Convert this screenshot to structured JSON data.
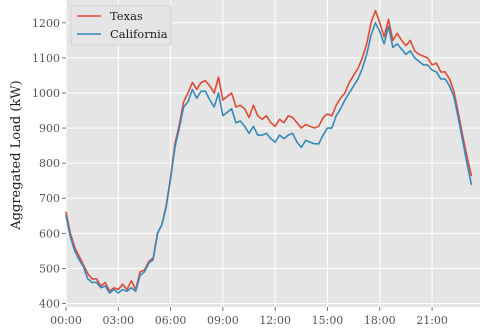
{
  "chart_data": {
    "type": "line",
    "xlabel": "",
    "ylabel": "Aggregated Load (kW)",
    "xlim": [
      0,
      23.75
    ],
    "ylim": [
      390,
      1265
    ],
    "xticks": [
      "00:00",
      "03:00",
      "06:00",
      "09:00",
      "12:00",
      "15:00",
      "18:00",
      "21:00"
    ],
    "yticks": [
      400,
      500,
      600,
      700,
      800,
      900,
      1000,
      1100,
      1200
    ],
    "grid": true,
    "legend_position": "top-left",
    "x_step_hours": 0.25,
    "series": [
      {
        "name": "Texas",
        "color": "#e24a33",
        "values": [
          660,
          600,
          560,
          535,
          510,
          485,
          470,
          470,
          450,
          460,
          435,
          445,
          440,
          455,
          440,
          465,
          440,
          490,
          495,
          520,
          530,
          600,
          625,
          680,
          760,
          855,
          910,
          975,
          1000,
          1030,
          1010,
          1030,
          1035,
          1020,
          1000,
          1045,
          980,
          990,
          1000,
          960,
          965,
          955,
          930,
          965,
          935,
          925,
          935,
          915,
          905,
          925,
          915,
          935,
          930,
          915,
          900,
          910,
          905,
          900,
          905,
          930,
          940,
          935,
          965,
          985,
          1000,
          1030,
          1050,
          1070,
          1100,
          1140,
          1200,
          1235,
          1200,
          1160,
          1210,
          1150,
          1170,
          1150,
          1135,
          1150,
          1120,
          1110,
          1105,
          1100,
          1080,
          1085,
          1060,
          1060,
          1040,
          1005,
          945,
          880,
          820,
          765
        ]
      },
      {
        "name": "California",
        "color": "#348abd",
        "values": [
          650,
          590,
          550,
          525,
          505,
          470,
          460,
          460,
          445,
          450,
          430,
          440,
          430,
          440,
          435,
          445,
          435,
          480,
          490,
          515,
          525,
          600,
          625,
          675,
          755,
          845,
          900,
          960,
          975,
          1010,
          985,
          1005,
          1005,
          980,
          960,
          1000,
          935,
          945,
          955,
          915,
          920,
          905,
          885,
          905,
          880,
          880,
          885,
          870,
          860,
          880,
          870,
          880,
          885,
          860,
          845,
          865,
          860,
          855,
          855,
          880,
          900,
          900,
          935,
          955,
          980,
          1000,
          1020,
          1040,
          1070,
          1110,
          1165,
          1200,
          1175,
          1140,
          1190,
          1130,
          1140,
          1125,
          1110,
          1120,
          1100,
          1090,
          1080,
          1080,
          1065,
          1060,
          1040,
          1040,
          1020,
          990,
          930,
          865,
          800,
          740
        ]
      }
    ]
  }
}
